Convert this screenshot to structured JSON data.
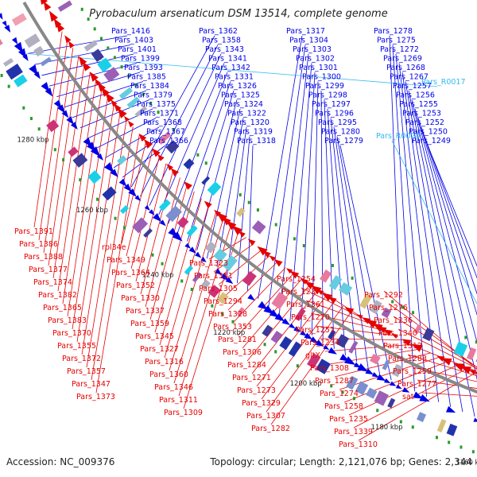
{
  "title": "Pyrobaculum arsenaticum DSM 13514, complete genome",
  "footer": {
    "accession": "Accession: NC_009376",
    "summary": "Topology: circular; Length: 2,121,076 bp; Genes: 2,344"
  },
  "colors": {
    "forward": "#0000e6",
    "reverse": "#e60000",
    "rna": "#33bbee",
    "backbone": "#888888"
  },
  "ticks": [
    "1300 kbp",
    "1280 kbp",
    "1260 kbp",
    "1240 kbp",
    "1220 kbp",
    "1200 kbp",
    "1180 kbp",
    "1160 kbp",
    "1140 kbp"
  ],
  "forward_labels": [
    "Pars_1416",
    "Pars_1403",
    "Pars_1401",
    "Pars_1399",
    "Pars_1393",
    "Pars_1385",
    "Pars_1384",
    "Pars_1379",
    "Pars_1375",
    "Pars_1371",
    "Pars_1368",
    "Pars_1367",
    "Pars_1366",
    "Pars_1362",
    "Pars_1358",
    "Pars_1343",
    "Pars_1341",
    "Pars_1342",
    "Pars_1331",
    "Pars_1326",
    "Pars_1325",
    "Pars_1324",
    "Pars_1322",
    "Pars_1320",
    "Pars_1319",
    "Pars_1318",
    "Pars_1317",
    "Pars_1304",
    "Pars_1303",
    "Pars_1302",
    "Pars_1301",
    "Pars_1300",
    "Pars_1299",
    "Pars_1298",
    "Pars_1297",
    "Pars_1296",
    "Pars_1295",
    "Pars_1280",
    "Pars_1279",
    "Pars_1278",
    "Pars_1275",
    "Pars_1272",
    "Pars_1269",
    "Pars_1268",
    "Pars_1267",
    "Pars_1257",
    "Pars_1256",
    "Pars_1255",
    "Pars_1253",
    "Pars_1252",
    "Pars_1250",
    "Pars_1249"
  ],
  "rna_labels": [
    "Pars_R0017",
    "Pars_R0020"
  ],
  "reverse_labels": [
    "Pars_1391",
    "Pars_1386",
    "Pars_1388",
    "Pars_1377",
    "Pars_1374",
    "Pars_1382",
    "Pars_1365",
    "Pars_1383",
    "Pars_1370",
    "Pars_1355",
    "Pars_1372",
    "Pars_1357",
    "Pars_1347",
    "Pars_1373",
    "rpl34e",
    "Pars_1349",
    "Pars_1364",
    "Pars_1352",
    "Pars_1330",
    "Pars_1337",
    "Pars_1359",
    "Pars_1345",
    "Pars_1327",
    "Pars_1316",
    "Pars_1360",
    "Pars_1346",
    "Pars_1311",
    "Pars_1309",
    "Pars_1323",
    "Pars_1351",
    "Pars_1305",
    "Pars_1294",
    "Pars_1328",
    "Pars_1353",
    "Pars_1281",
    "Pars_1306",
    "Pars_1284",
    "Pars_1271",
    "Pars_1273",
    "Pars_1329",
    "Pars_1307",
    "Pars_1282",
    "Pars_1254",
    "Pars_1237",
    "Pars_1361",
    "Pars_1270",
    "Pars_1251",
    "Pars_1234",
    "gltX",
    "Pars_1308",
    "Pars_1287",
    "Pars_1274",
    "Pars_1258",
    "Pars_1235",
    "Pars_1339",
    "Pars_1310",
    "Pars_1292",
    "Pars_1276",
    "Pars_1236",
    "Pars_1340",
    "Pars_1312",
    "Pars_1288",
    "Pars_1259",
    "Pars_1277",
    "sat"
  ]
}
